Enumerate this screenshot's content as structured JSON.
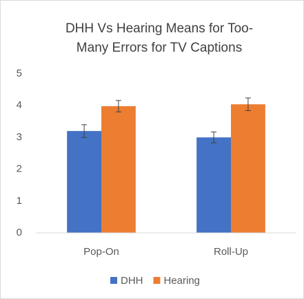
{
  "chart_data": {
    "type": "bar",
    "title": [
      "DHH Vs Hearing Means for Too-",
      "Many Errors for TV Captions"
    ],
    "categories": [
      "Pop-On",
      "Roll-Up"
    ],
    "series": [
      {
        "name": "DHH",
        "color": "#4472c4",
        "values": [
          3.2,
          3.0
        ],
        "errors": [
          0.2,
          0.17
        ]
      },
      {
        "name": "Hearing",
        "color": "#ed7d31",
        "values": [
          3.98,
          4.04
        ],
        "errors": [
          0.18,
          0.2
        ]
      }
    ],
    "ylim": [
      0,
      5
    ],
    "yticks": [
      0,
      1,
      2,
      3,
      4,
      5
    ],
    "grid": false,
    "legend": "bottom"
  }
}
